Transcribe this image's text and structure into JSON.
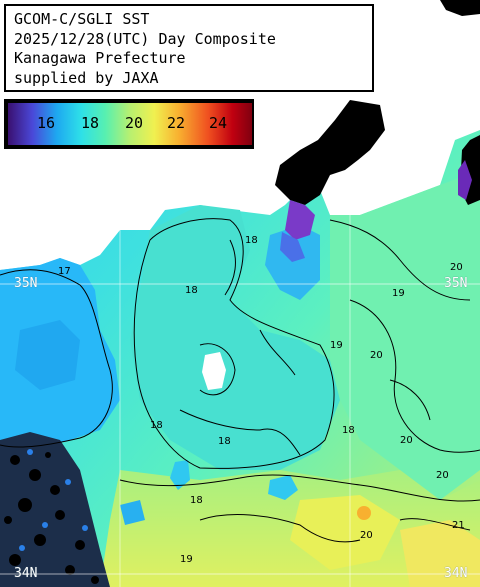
{
  "title": {
    "line1": "GCOM-C/SGLI SST",
    "line2": "2025/12/28(UTC) Day Composite",
    "line3": "Kanagawa Prefecture",
    "line4": "supplied by JAXA"
  },
  "legend": {
    "ticks": [
      "16",
      "18",
      "20",
      "22",
      "24"
    ],
    "range": [
      14.5,
      25.5
    ],
    "colors": [
      "#3a1070",
      "#4a48d8",
      "#1ea8f0",
      "#2ee0e8",
      "#58f0b0",
      "#b8f070",
      "#f0f050",
      "#f8b030",
      "#f05020",
      "#c00010",
      "#800010"
    ]
  },
  "grid": {
    "lat_35": "35N",
    "lat_34": "34N"
  },
  "contours": {
    "c17": "17",
    "c18": "18",
    "c19": "19",
    "c20": "20",
    "c21": "21"
  },
  "colors": {
    "land": "#000000",
    "sea_cool": "#38d0f0",
    "sea_mid": "#58f0c0",
    "sea_warm": "#c8f080",
    "gridline": "#ffffff"
  }
}
